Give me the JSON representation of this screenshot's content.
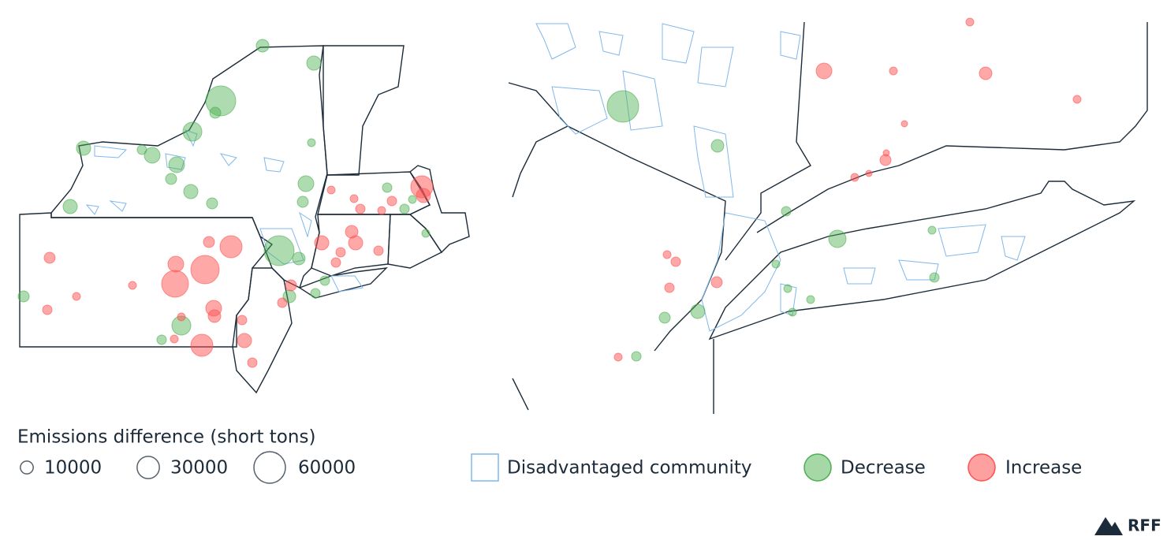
{
  "legend": {
    "title": "Emissions difference (short tons)",
    "sizes": [
      10000,
      30000,
      60000
    ],
    "items": [
      "Disadvantaged community",
      "Decrease",
      "Increase"
    ]
  },
  "logo": "RFF"
}
